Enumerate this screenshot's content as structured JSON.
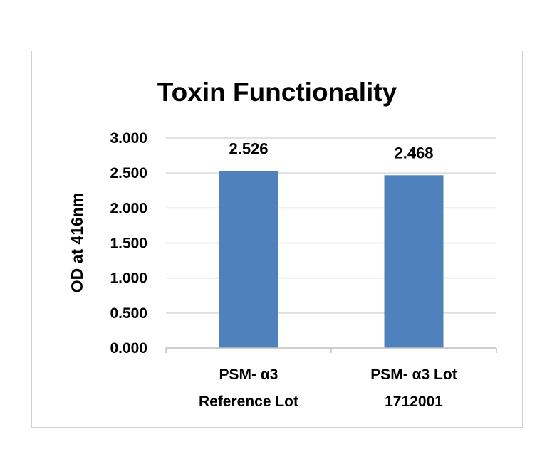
{
  "chart_data": {
    "type": "bar",
    "title": "Toxin Functionality",
    "xlabel": "",
    "ylabel": "OD at 416nm",
    "categories": [
      [
        "PSM- α3",
        "Reference Lot"
      ],
      [
        "PSM- α3 Lot",
        "1712001"
      ]
    ],
    "values": [
      2.526,
      2.468
    ],
    "data_labels": [
      "2.526",
      "2.468"
    ],
    "ylim": [
      0,
      3.0
    ],
    "yticks": [
      "0.000",
      "0.500",
      "1.000",
      "1.500",
      "2.000",
      "2.500",
      "3.000"
    ],
    "grid": true,
    "legend": "none",
    "bar_color": "#4f81bd",
    "grid_color": "#d9d9d9"
  }
}
